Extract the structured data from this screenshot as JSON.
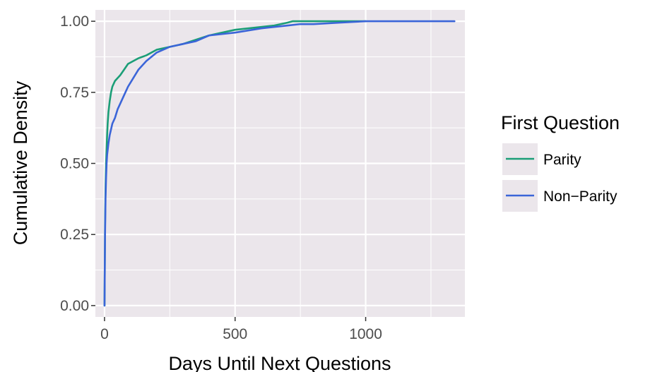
{
  "chart_data": {
    "type": "line",
    "xlabel": "Days Until Next Questions",
    "ylabel": "Cumulative Density",
    "xlim": [
      -35,
      1380
    ],
    "ylim": [
      -0.04,
      1.04
    ],
    "x_ticks": [
      0,
      500,
      1000
    ],
    "x_tick_labels": [
      "0",
      "500",
      "1000"
    ],
    "y_ticks": [
      0,
      0.25,
      0.5,
      0.75,
      1.0
    ],
    "y_tick_labels": [
      "0.00",
      "0.25",
      "0.50",
      "0.75",
      "1.00"
    ],
    "grid": true,
    "legend": {
      "title": "First Question",
      "position": "right",
      "entries": [
        "Parity",
        "Non−Parity"
      ]
    },
    "series": [
      {
        "name": "Parity",
        "color": "#1b9e77",
        "x": [
          0,
          2,
          4,
          6,
          8,
          10,
          12,
          15,
          20,
          25,
          30,
          40,
          50,
          60,
          75,
          90,
          110,
          130,
          160,
          200,
          250,
          300,
          400,
          500,
          550,
          600,
          650,
          700,
          720,
          800,
          900,
          1000
        ],
        "y": [
          0.0,
          0.28,
          0.42,
          0.5,
          0.55,
          0.6,
          0.64,
          0.68,
          0.72,
          0.75,
          0.77,
          0.79,
          0.8,
          0.81,
          0.83,
          0.85,
          0.86,
          0.87,
          0.88,
          0.9,
          0.91,
          0.92,
          0.95,
          0.97,
          0.975,
          0.98,
          0.985,
          0.995,
          1.0,
          1.0,
          1.0,
          1.0
        ]
      },
      {
        "name": "Non−Parity",
        "color": "#3b65d8",
        "x": [
          0,
          2,
          4,
          6,
          8,
          10,
          15,
          20,
          25,
          30,
          40,
          50,
          60,
          75,
          90,
          110,
          130,
          160,
          200,
          250,
          300,
          350,
          400,
          500,
          600,
          700,
          750,
          800,
          900,
          1000,
          1100,
          1200,
          1300,
          1340
        ],
        "y": [
          0.0,
          0.25,
          0.38,
          0.45,
          0.5,
          0.53,
          0.57,
          0.6,
          0.62,
          0.64,
          0.66,
          0.69,
          0.71,
          0.74,
          0.77,
          0.8,
          0.83,
          0.86,
          0.89,
          0.91,
          0.92,
          0.93,
          0.95,
          0.96,
          0.975,
          0.985,
          0.99,
          0.99,
          0.995,
          1.0,
          1.0,
          1.0,
          1.0,
          1.0
        ]
      }
    ]
  }
}
